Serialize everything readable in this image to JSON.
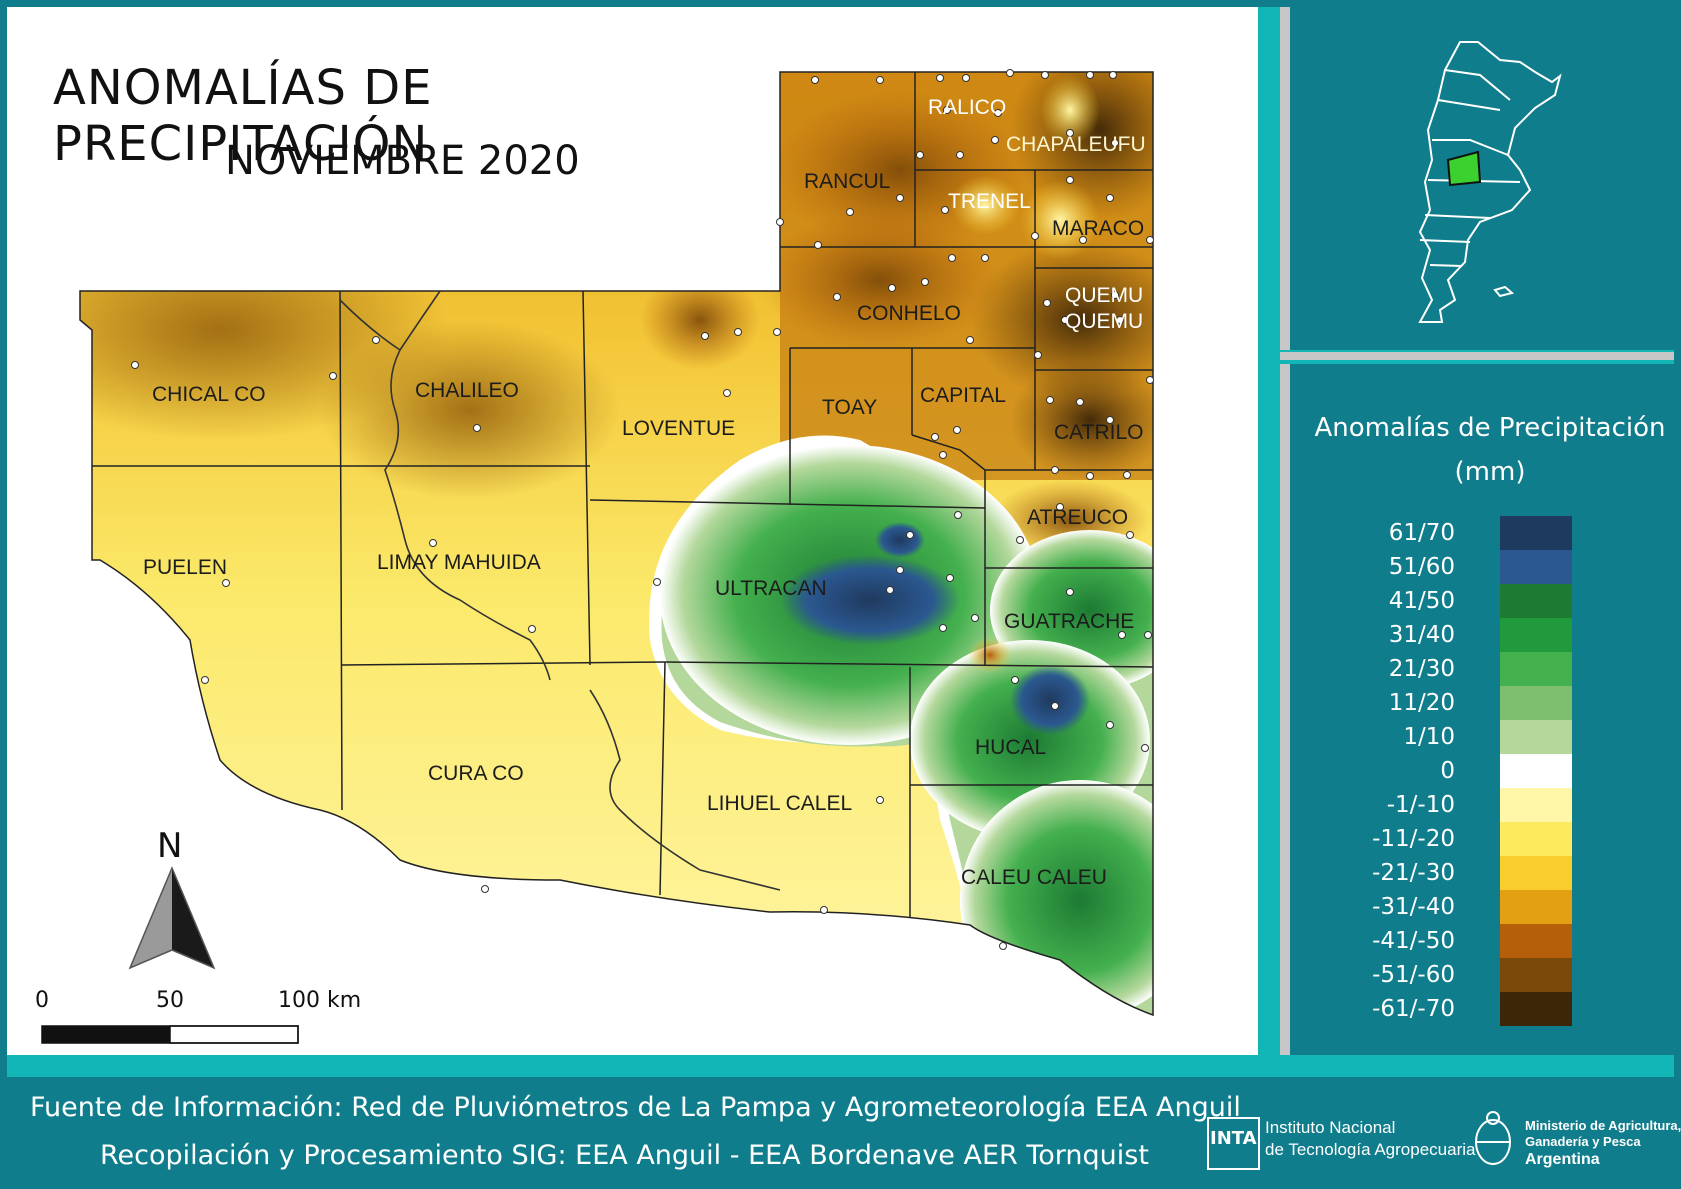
{
  "header": {
    "title": "ANOMALÍAS DE PRECIPITACIÓN",
    "subtitle": "NOVIEMBRE 2020"
  },
  "departments": [
    {
      "id": "ralico",
      "label": "RALICO",
      "light": true
    },
    {
      "id": "chapaleufu",
      "label": "CHAPALEUFU",
      "light": false
    },
    {
      "id": "rancul",
      "label": "RANCUL",
      "light": false
    },
    {
      "id": "trenel",
      "label": "TRENEL",
      "light": true
    },
    {
      "id": "maraco",
      "label": "MARACO",
      "light": false
    },
    {
      "id": "quemu1",
      "label": "QUEMU",
      "light": true
    },
    {
      "id": "quemu2",
      "label": "QUEMU",
      "light": true
    },
    {
      "id": "conhelo",
      "label": "CONHELO",
      "light": false
    },
    {
      "id": "chicalco",
      "label": "CHICAL CO",
      "light": false
    },
    {
      "id": "chalileo",
      "label": "CHALILEO",
      "light": false
    },
    {
      "id": "loventue",
      "label": "LOVENTUE",
      "light": false
    },
    {
      "id": "toay",
      "label": "TOAY",
      "light": false
    },
    {
      "id": "capital",
      "label": "CAPITAL",
      "light": false
    },
    {
      "id": "catrilo",
      "label": "CATRILO",
      "light": false
    },
    {
      "id": "atreuco",
      "label": "ATREUCO",
      "light": false
    },
    {
      "id": "puelen",
      "label": "PUELEN",
      "light": false
    },
    {
      "id": "limay",
      "label": "LIMAY MAHUIDA",
      "light": false
    },
    {
      "id": "ultracan",
      "label": "ULTRACAN",
      "light": false
    },
    {
      "id": "guatrache",
      "label": "GUATRACHE",
      "light": false
    },
    {
      "id": "hucal",
      "label": "HUCAL",
      "light": false
    },
    {
      "id": "curaco",
      "label": "CURA CO",
      "light": false
    },
    {
      "id": "lihuel",
      "label": "LIHUEL CALEL",
      "light": false
    },
    {
      "id": "caleu",
      "label": "CALEU CALEU",
      "light": false
    }
  ],
  "north_arrow": {
    "label": "N"
  },
  "scale_bar": {
    "labels": [
      "0",
      "50",
      "100 km"
    ]
  },
  "legend": {
    "title_line1": "Anomalías de Precipitación",
    "title_line2": "(mm)",
    "classes": [
      {
        "label": "61/70",
        "color": "#1f3a5f"
      },
      {
        "label": "51/60",
        "color": "#2b5890"
      },
      {
        "label": "41/50",
        "color": "#1c7a33"
      },
      {
        "label": "31/40",
        "color": "#21993d"
      },
      {
        "label": "21/30",
        "color": "#44b04e"
      },
      {
        "label": "11/20",
        "color": "#7dbf6e"
      },
      {
        "label": "1/10",
        "color": "#b4d89c"
      },
      {
        "label": "0",
        "color": "#ffffff"
      },
      {
        "label": "-1/-10",
        "color": "#fff6a8"
      },
      {
        "label": "-11/-20",
        "color": "#fdeb5d"
      },
      {
        "label": "-21/-30",
        "color": "#f8cd2c"
      },
      {
        "label": "-31/-40",
        "color": "#e3a013"
      },
      {
        "label": "-41/-50",
        "color": "#b65f0b"
      },
      {
        "label": "-51/-60",
        "color": "#7a4808"
      },
      {
        "label": "-61/-70",
        "color": "#3d2608"
      }
    ]
  },
  "footer": {
    "line1": "Fuente de Información: Red de Pluviómetros de La Pampa y Agrometeorología EEA Anguil",
    "line2": "Recopilación y Procesamiento SIG: EEA Anguil - EEA Bordenave AER Tornquist"
  },
  "logos": {
    "inta_abbr": "INTA",
    "inta_line1": "Instituto Nacional",
    "inta_line2": "de Tecnología Agropecuaria",
    "min_line1": "Ministerio de Agricultura,",
    "min_line2": "Ganadería y Pesca",
    "min_line3": "Argentina"
  }
}
